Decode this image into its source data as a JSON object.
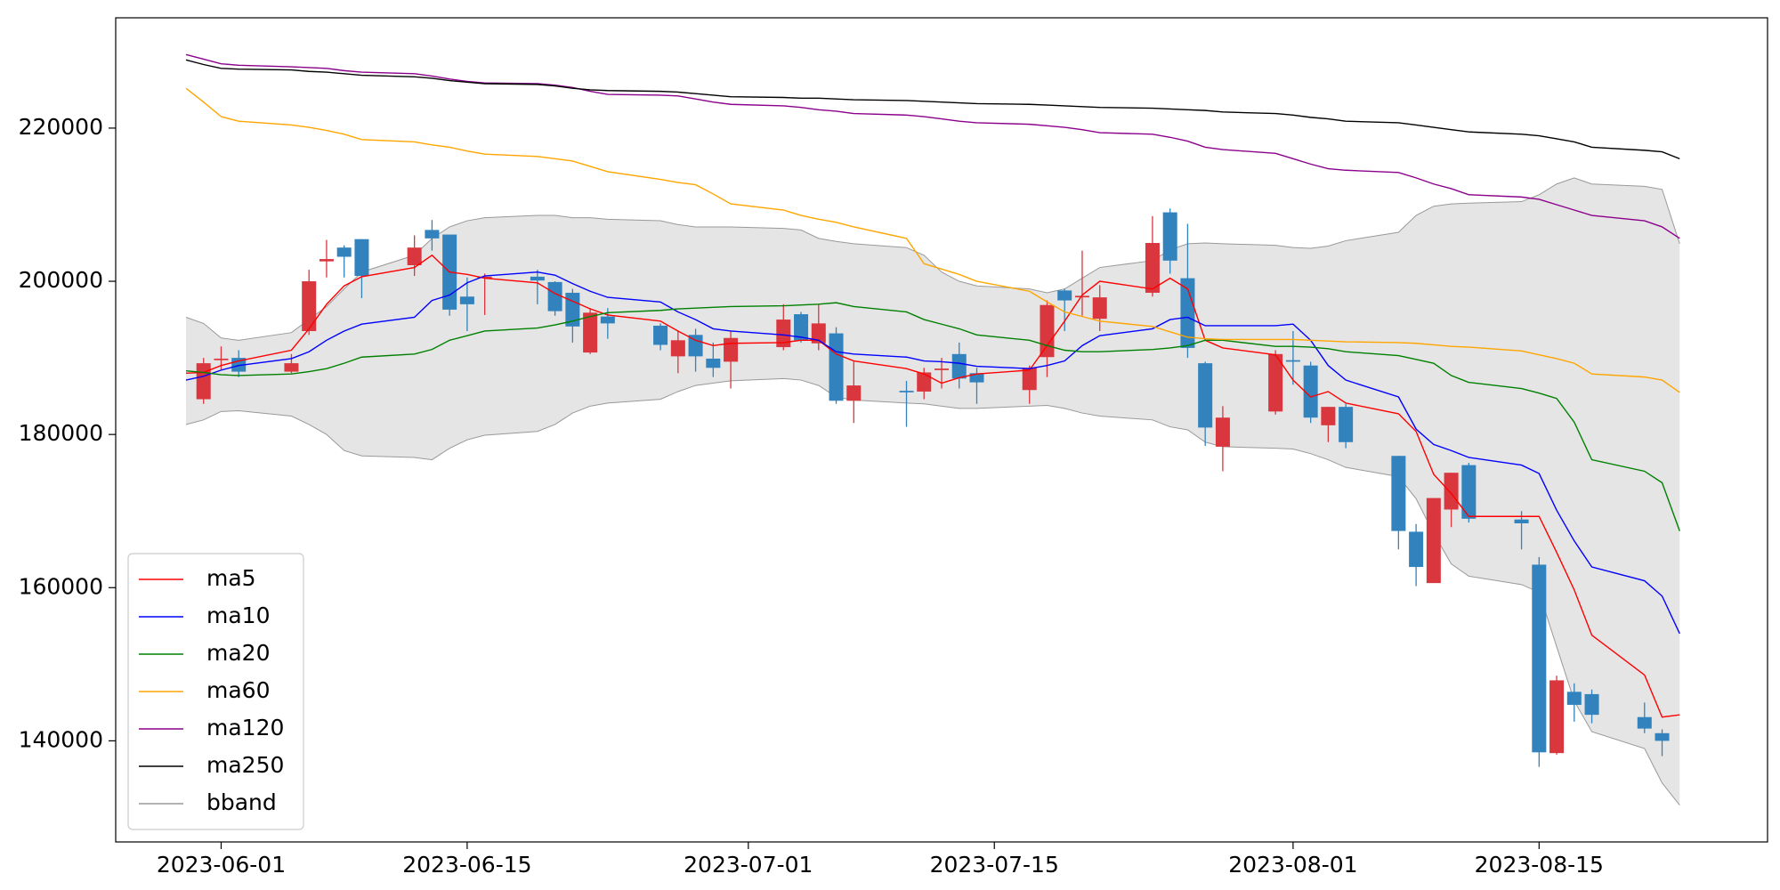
{
  "chart_data": {
    "type": "candlestick",
    "x": [
      "2023-05-30",
      "2023-05-31",
      "2023-06-01",
      "2023-06-02",
      "2023-06-05",
      "2023-06-06",
      "2023-06-07",
      "2023-06-08",
      "2023-06-09",
      "2023-06-12",
      "2023-06-13",
      "2023-06-14",
      "2023-06-15",
      "2023-06-16",
      "2023-06-19",
      "2023-06-20",
      "2023-06-21",
      "2023-06-22",
      "2023-06-23",
      "2023-06-26",
      "2023-06-27",
      "2023-06-28",
      "2023-06-29",
      "2023-06-30",
      "2023-07-03",
      "2023-07-04",
      "2023-07-05",
      "2023-07-06",
      "2023-07-07",
      "2023-07-10",
      "2023-07-11",
      "2023-07-12",
      "2023-07-13",
      "2023-07-14",
      "2023-07-17",
      "2023-07-18",
      "2023-07-19",
      "2023-07-20",
      "2023-07-21",
      "2023-07-24",
      "2023-07-25",
      "2023-07-26",
      "2023-07-27",
      "2023-07-28",
      "2023-07-31",
      "2023-08-01",
      "2023-08-02",
      "2023-08-03",
      "2023-08-04",
      "2023-08-07",
      "2023-08-08",
      "2023-08-09",
      "2023-08-10",
      "2023-08-11",
      "2023-08-14",
      "2023-08-15",
      "2023-08-16",
      "2023-08-17",
      "2023-08-18",
      "2023-08-21",
      "2023-08-22",
      "2023-08-23"
    ],
    "candles": {
      "up_color": "#d9363e",
      "down_color": "#3182bd",
      "open": [
        null,
        184600,
        189700,
        190000,
        188200,
        193500,
        202600,
        204400,
        205500,
        202100,
        206700,
        206100,
        198000,
        200400,
        200600,
        199900,
        198500,
        190700,
        195400,
        194200,
        190200,
        193000,
        189900,
        189500,
        191400,
        195700,
        191900,
        193200,
        184400,
        185700,
        185600,
        188400,
        190500,
        188000,
        185800,
        190100,
        198800,
        197900,
        195100,
        198500,
        209000,
        200400,
        189300,
        178400,
        183000,
        189700,
        189000,
        181200,
        183600,
        177200,
        167300,
        160600,
        170200,
        176000,
        168900,
        163000,
        138400,
        146400,
        146100,
        143100,
        141000,
        null
      ],
      "high": [
        null,
        190000,
        191500,
        191000,
        190500,
        201500,
        205400,
        204700,
        205500,
        206000,
        208000,
        206100,
        200500,
        201000,
        201500,
        200000,
        199000,
        196500,
        196500,
        194500,
        193500,
        193800,
        192000,
        193500,
        197000,
        196000,
        197000,
        194000,
        189500,
        187000,
        188700,
        190000,
        192000,
        188700,
        189000,
        197500,
        199000,
        204000,
        199500,
        208500,
        209500,
        207500,
        189500,
        183700,
        191000,
        193500,
        189500,
        183600,
        184000,
        177200,
        168300,
        171700,
        175000,
        176300,
        170000,
        164000,
        148500,
        147500,
        146700,
        145000,
        141500,
        null
      ],
      "low": [
        null,
        184000,
        188500,
        187500,
        188000,
        193000,
        200500,
        200500,
        197800,
        200700,
        204000,
        195500,
        193500,
        195600,
        197000,
        195500,
        192000,
        190500,
        192500,
        191000,
        188000,
        188200,
        187500,
        186000,
        191000,
        192000,
        191000,
        184000,
        181500,
        181000,
        184600,
        186000,
        186000,
        184000,
        184000,
        187500,
        193500,
        195500,
        193500,
        198000,
        201000,
        190000,
        178500,
        175200,
        182600,
        186500,
        181500,
        179000,
        178200,
        165000,
        160200,
        160600,
        167900,
        168500,
        165000,
        136600,
        138200,
        142500,
        142300,
        141000,
        138000,
        null
      ],
      "close": [
        null,
        189300,
        189900,
        188200,
        189300,
        200000,
        202900,
        203200,
        200700,
        204400,
        205600,
        196300,
        197000,
        200600,
        200100,
        196100,
        194100,
        195900,
        194500,
        191700,
        192300,
        190200,
        188700,
        192600,
        195000,
        192300,
        194500,
        184400,
        186400,
        185500,
        188100,
        188600,
        187300,
        186800,
        188700,
        196900,
        197500,
        198100,
        197900,
        205000,
        202700,
        191300,
        180900,
        182200,
        190500,
        189500,
        182200,
        183600,
        179000,
        167400,
        162700,
        171700,
        175000,
        169000,
        168400,
        138500,
        147900,
        144700,
        143400,
        141600,
        140000,
        null
      ]
    },
    "series": [
      {
        "name": "ma5",
        "color": "#ff0000",
        "values": [
          188000,
          188100,
          189000,
          189600,
          191000,
          193800,
          197000,
          199400,
          200600,
          201800,
          203400,
          201200,
          200900,
          200400,
          199800,
          198400,
          197400,
          196400,
          195600,
          194800,
          193500,
          192300,
          191600,
          191900,
          192000,
          192300,
          192300,
          190500,
          189600,
          188600,
          187900,
          186700,
          187400,
          187900,
          188400,
          191600,
          194800,
          198200,
          200000,
          199000,
          200400,
          199000,
          192300,
          191300,
          190400,
          187100,
          184900,
          185600,
          184100,
          182700,
          180400,
          174800,
          172300,
          169300,
          169300,
          169300,
          164600,
          159700,
          153800,
          148600,
          143100,
          143400
        ]
      },
      {
        "name": "ma10",
        "color": "#0000ff",
        "values": [
          187100,
          187600,
          188400,
          189000,
          189900,
          190800,
          192300,
          193500,
          194400,
          195300,
          197500,
          198200,
          199800,
          200700,
          201200,
          200800,
          199700,
          198700,
          197900,
          197300,
          196000,
          195000,
          193800,
          193500,
          193000,
          192700,
          192300,
          190800,
          190500,
          190100,
          189600,
          189500,
          189300,
          188900,
          188600,
          189000,
          189600,
          191600,
          192900,
          193800,
          195000,
          195300,
          194200,
          194200,
          194200,
          194400,
          192300,
          189000,
          187100,
          184900,
          180700,
          178700,
          177900,
          177000,
          176000,
          174900,
          170100,
          166100,
          162700,
          160900,
          158900,
          154000
        ]
      },
      {
        "name": "ma20",
        "color": "#008000",
        "values": [
          188300,
          188100,
          187800,
          187700,
          187900,
          188200,
          188600,
          189300,
          190100,
          190500,
          191100,
          192300,
          192900,
          193500,
          193900,
          194300,
          194800,
          195400,
          195900,
          196200,
          196400,
          196500,
          196600,
          196700,
          196800,
          196900,
          197000,
          197200,
          196700,
          196000,
          195000,
          194400,
          193800,
          193000,
          192300,
          191600,
          191000,
          190800,
          190800,
          191100,
          191300,
          191600,
          192300,
          192300,
          191500,
          191500,
          191400,
          191200,
          190800,
          190300,
          189800,
          189300,
          187700,
          186800,
          186000,
          185400,
          184700,
          181600,
          176700,
          175200,
          173700,
          167400
        ]
      },
      {
        "name": "ma60",
        "color": "#ffa500",
        "values": [
          225200,
          223400,
          221500,
          220900,
          220400,
          220100,
          219700,
          219200,
          218500,
          218200,
          217800,
          217500,
          217000,
          216600,
          216300,
          216000,
          215700,
          215000,
          214300,
          213300,
          212900,
          212600,
          211400,
          210100,
          209300,
          208600,
          208100,
          207700,
          207100,
          205600,
          202300,
          201600,
          200900,
          200000,
          198700,
          197300,
          196000,
          195400,
          194800,
          194100,
          193400,
          192700,
          192500,
          192400,
          192400,
          192400,
          192300,
          192200,
          192100,
          192000,
          191900,
          191700,
          191500,
          191400,
          190900,
          190400,
          189900,
          189300,
          187900,
          187500,
          187100,
          185500
        ]
      },
      {
        "name": "ma120",
        "color": "#8b008b",
        "values": [
          229600,
          229000,
          228400,
          228200,
          228000,
          227900,
          227800,
          227500,
          227300,
          227100,
          226800,
          226400,
          226100,
          225900,
          225800,
          225600,
          225300,
          224800,
          224400,
          224300,
          224200,
          223800,
          223400,
          223100,
          222900,
          222700,
          222400,
          222200,
          221900,
          221700,
          221500,
          221200,
          220900,
          220700,
          220500,
          220300,
          220100,
          219800,
          219400,
          219200,
          218800,
          218300,
          217500,
          217200,
          216700,
          216000,
          215300,
          214700,
          214500,
          214200,
          213500,
          212700,
          212100,
          211300,
          211000,
          210700,
          210000,
          209300,
          208600,
          207900,
          207100,
          205600
        ]
      },
      {
        "name": "ma250",
        "color": "#000000",
        "values": [
          228900,
          228300,
          227800,
          227700,
          227600,
          227400,
          227300,
          227100,
          226900,
          226700,
          226500,
          226200,
          226000,
          225800,
          225700,
          225500,
          225200,
          225000,
          224900,
          224800,
          224700,
          224500,
          224300,
          224100,
          224000,
          223900,
          223900,
          223800,
          223700,
          223600,
          223500,
          223400,
          223300,
          223200,
          223100,
          223000,
          222900,
          222800,
          222700,
          222600,
          222500,
          222400,
          222300,
          222100,
          221900,
          221700,
          221400,
          221200,
          220900,
          220700,
          220400,
          220100,
          219800,
          219500,
          219200,
          219000,
          218600,
          218200,
          217500,
          217100,
          216900,
          216000
        ]
      }
    ],
    "bband": {
      "name": "bband",
      "color": "#999999",
      "fill": "#e5e5e5",
      "upper": [
        195300,
        194500,
        192600,
        192300,
        193300,
        195000,
        196700,
        199000,
        201200,
        203400,
        205600,
        207100,
        207900,
        208300,
        208600,
        208600,
        208300,
        208300,
        208100,
        207900,
        207400,
        207100,
        207100,
        207100,
        206900,
        206700,
        205600,
        205200,
        204900,
        204400,
        203400,
        201200,
        200000,
        199400,
        199000,
        198500,
        199000,
        200400,
        201800,
        202700,
        204100,
        204900,
        205000,
        204900,
        204700,
        204400,
        204300,
        204600,
        205300,
        206400,
        208600,
        209800,
        210100,
        210200,
        210400,
        211300,
        212700,
        213500,
        212700,
        212400,
        212000,
        204900
      ],
      "lower": [
        181300,
        181900,
        183000,
        183100,
        182400,
        181300,
        180000,
        177900,
        177200,
        177000,
        176700,
        178200,
        179300,
        179900,
        180400,
        181300,
        182800,
        183700,
        184100,
        184600,
        185600,
        186400,
        186700,
        187000,
        187300,
        187100,
        186400,
        184900,
        184500,
        184100,
        184000,
        183700,
        183400,
        183400,
        183700,
        183800,
        183400,
        182800,
        182400,
        181900,
        181000,
        180600,
        179000,
        178400,
        178200,
        178100,
        177500,
        176700,
        175700,
        174500,
        171600,
        167100,
        163100,
        161500,
        160400,
        159400,
        152300,
        145200,
        141200,
        139000,
        134500,
        131600
      ]
    },
    "xlim": [
      "2023-05-26",
      "2023-08-28"
    ],
    "xticks": [
      "2023-06-01",
      "2023-06-15",
      "2023-07-01",
      "2023-07-15",
      "2023-08-01",
      "2023-08-15"
    ],
    "ylim": [
      126800,
      234400
    ],
    "yticks": [
      140000,
      160000,
      180000,
      200000,
      220000
    ],
    "legend": "lower left",
    "grid": false
  }
}
